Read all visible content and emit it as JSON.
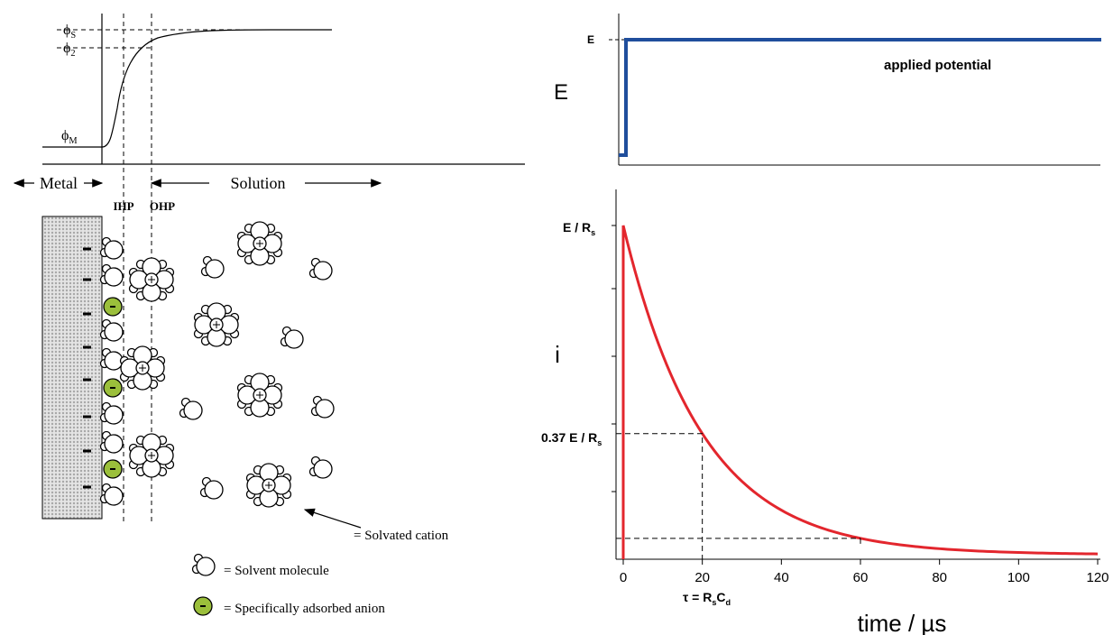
{
  "left_panel": {
    "potential_labels": [
      {
        "symbol": "ϕ",
        "sub": "S"
      },
      {
        "symbol": "ϕ",
        "sub": "2"
      },
      {
        "symbol": "ϕ",
        "sub": "M"
      }
    ],
    "regions": {
      "metal": "Metal",
      "solution": "Solution"
    },
    "planes": {
      "ihp": "IHP",
      "ohp": "OHP"
    },
    "legend": {
      "cation": "= Solvated cation",
      "solvent": "= Solvent molecule",
      "anion": "= Specifically adsorbed anion"
    }
  },
  "right_panel": {
    "top": {
      "y_label": "E",
      "level_label": "E",
      "annotation": "applied potential"
    },
    "bottom": {
      "y_label": "i",
      "peak_label": {
        "text": "E / R",
        "sub": "s"
      },
      "tau_level_label": {
        "text": "0.37 E / R",
        "sub": "s"
      },
      "tau_label": {
        "text": "τ = R",
        "sub1": "s",
        "mid": "C",
        "sub2": "d"
      },
      "x_label": "time / µs",
      "xlim": [
        0,
        120
      ],
      "xticks": [
        0,
        20,
        40,
        60,
        80,
        100,
        120
      ],
      "tau": 20
    }
  }
}
